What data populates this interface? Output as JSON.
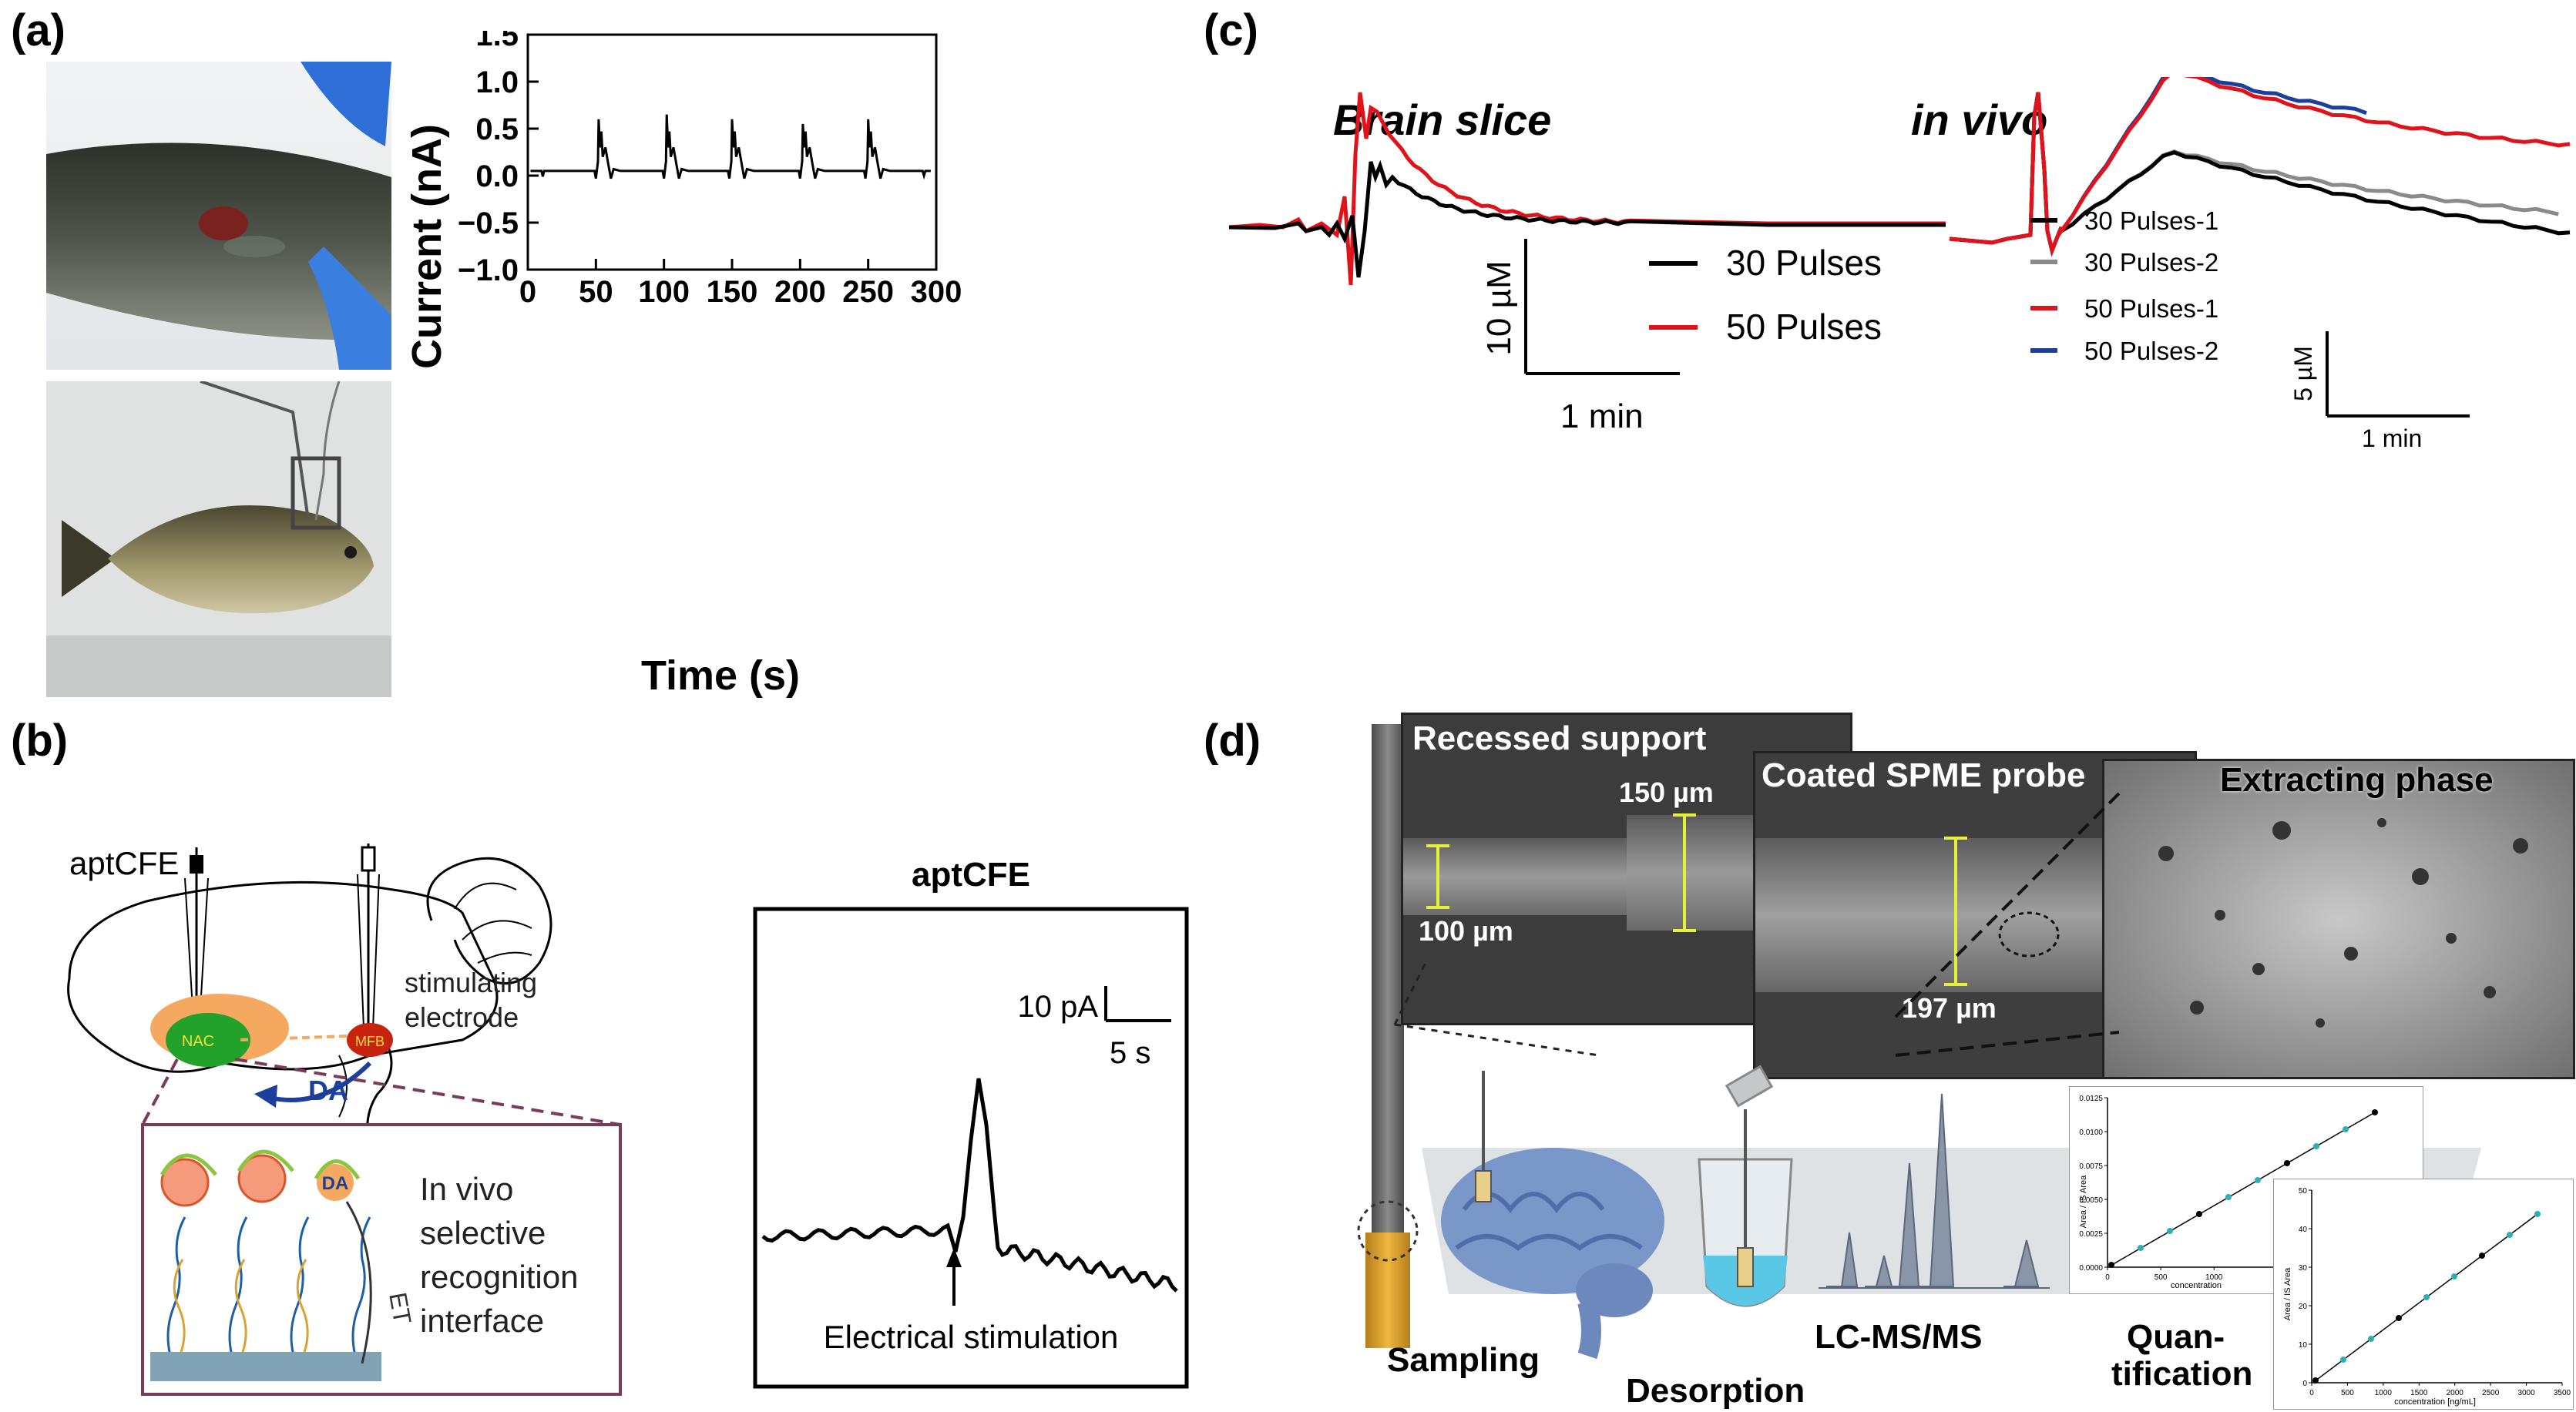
{
  "panels": {
    "a": {
      "label": "(a)"
    },
    "b": {
      "label": "(b)"
    },
    "c": {
      "label": "(c)"
    },
    "d": {
      "label": "(d)"
    }
  },
  "chart_data": [
    {
      "type": "line",
      "title": "",
      "xlabel": "Time (s)",
      "ylabel": "Current (nA)",
      "xlim": [
        0,
        300
      ],
      "ylim": [
        -1.0,
        1.5
      ],
      "xticks": [
        "0",
        "50",
        "100",
        "150",
        "200",
        "250",
        "300"
      ],
      "yticks": [
        "−1.0",
        "−0.5",
        "0.0",
        "0.5",
        "1.0",
        "1.5"
      ],
      "baseline": 0.05,
      "peaks": [
        {
          "x": 52,
          "y": 0.6
        },
        {
          "x": 102,
          "y": 0.65
        },
        {
          "x": 150,
          "y": 0.6
        },
        {
          "x": 202,
          "y": 0.55
        },
        {
          "x": 250,
          "y": 0.6
        }
      ]
    },
    {
      "type": "line",
      "title": "Brain slice",
      "series": [
        {
          "name": "30 Pulses",
          "color": "#000000"
        },
        {
          "name": "50 Pulses",
          "color": "#e0131b"
        }
      ],
      "scale_bar": {
        "y_label": "10 µM",
        "x_label": "1 min"
      }
    },
    {
      "type": "line",
      "title": "in vivo",
      "series": [
        {
          "name": "30 Pulses-1",
          "color": "#000000"
        },
        {
          "name": "30 Pulses-2",
          "color": "#8a8a8a"
        },
        {
          "name": "50 Pulses-1",
          "color": "#e0131b"
        },
        {
          "name": "50 Pulses-2",
          "color": "#1c3f9c"
        }
      ],
      "scale_bar": {
        "y_label": "5 µM",
        "x_label": "1 min"
      }
    },
    {
      "type": "line",
      "title": "aptCFE",
      "scale_bar": {
        "y_label": "10 pA",
        "x_label": "5 s"
      },
      "annotation": "Electrical stimulation"
    }
  ],
  "diagram_b": {
    "probe_label": "aptCFE",
    "stim_label_1": "stimulating",
    "stim_label_2": "electrode",
    "nac_label": "NAC",
    "mfb_label": "MFB",
    "da_label": "DA",
    "da_ball_label": "DA",
    "et_label": "ET",
    "interface_lines": [
      "In vivo",
      "selective",
      "recognition",
      "interface"
    ]
  },
  "diagram_d": {
    "recessed_title": "Recessed support",
    "recessed_dim_1": "150 µm",
    "recessed_dim_2": "100 µm",
    "coated_title": "Coated SPME probe",
    "coated_dim": "197 µm",
    "extract_title": "Extracting phase",
    "sampling": "Sampling",
    "desorption": "Desorption",
    "lcms": "LC-MS/MS",
    "quant_1": "Quan-",
    "quant_2": "tification",
    "cal1": {
      "ylabel": "Area / IS Area",
      "xlabel": "concentration",
      "yticks": [
        "0.0000",
        "0.0025",
        "0.0050",
        "0.0075",
        "0.0100",
        "0.0125"
      ],
      "xticks": [
        "0",
        "500",
        "1000"
      ]
    },
    "cal2": {
      "ylabel": "Area / IS Area",
      "xlabel": "concentration [ng/mL]",
      "yticks": [
        "0",
        "10",
        "20",
        "30",
        "40",
        "50"
      ],
      "xticks": [
        "0",
        "500",
        "1000",
        "1500",
        "2000",
        "2500",
        "3000",
        "3500"
      ]
    }
  }
}
